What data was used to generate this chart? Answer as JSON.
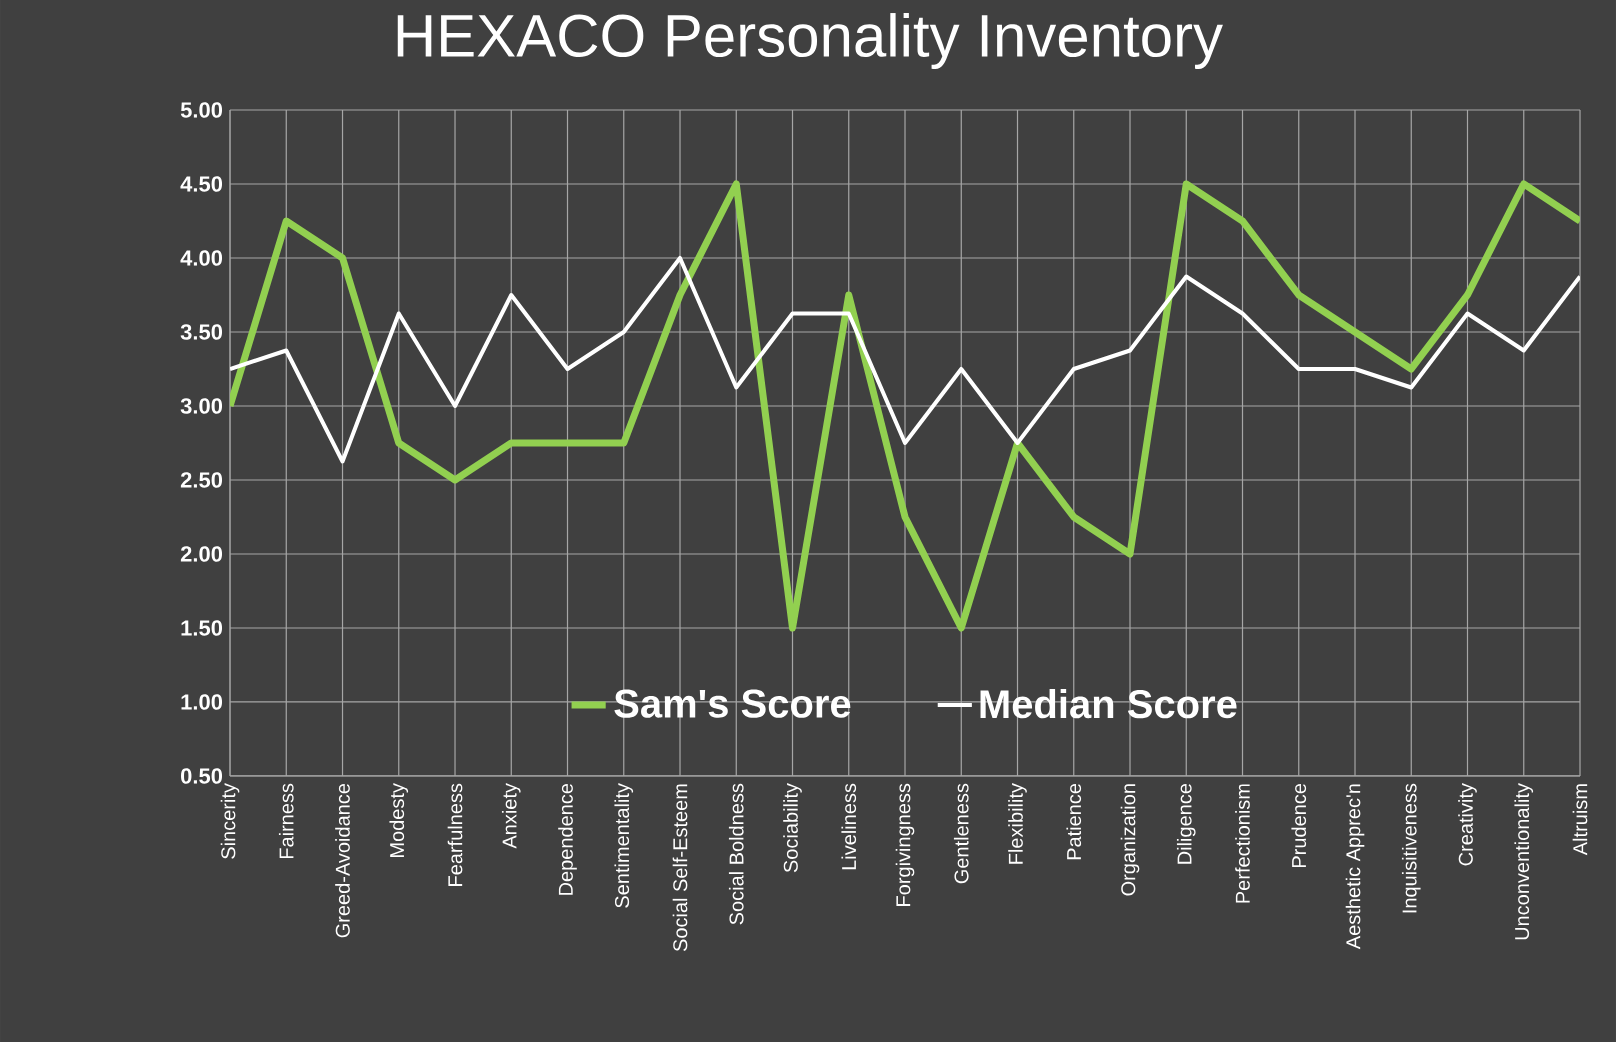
{
  "chart_data": {
    "type": "line",
    "title": "HEXACO Personality Inventory",
    "categories": [
      "Sincerity",
      "Fairness",
      "Greed-Avoidance",
      "Modesty",
      "Fearfulness",
      "Anxiety",
      "Dependence",
      "Sentimentality",
      "Social Self-Esteem",
      "Social Boldness",
      "Sociability",
      "Liveliness",
      "Forgivingness",
      "Gentleness",
      "Flexibility",
      "Patience",
      "Organization",
      "Diligence",
      "Perfectionism",
      "Prudence",
      "Aesthetic Apprec'n",
      "Inquisitiveness",
      "Creativity",
      "Unconventionality",
      "Altruism"
    ],
    "series": [
      {
        "name": "Sam's Score",
        "color": "#92d050",
        "values": [
          3.0,
          4.25,
          4.0,
          2.75,
          2.5,
          2.75,
          2.75,
          2.75,
          3.75,
          4.5,
          1.5,
          3.75,
          2.25,
          1.5,
          2.75,
          2.25,
          2.0,
          4.5,
          4.25,
          3.75,
          3.5,
          3.25,
          3.75,
          4.5,
          4.25
        ]
      },
      {
        "name": "Median Score",
        "color": "#ffffff",
        "values": [
          3.25,
          3.375,
          2.625,
          3.625,
          3.0,
          3.75,
          3.25,
          3.5,
          4.0,
          3.125,
          3.625,
          3.625,
          2.75,
          3.25,
          2.75,
          3.25,
          3.375,
          3.875,
          3.625,
          3.25,
          3.25,
          3.125,
          3.625,
          3.375,
          3.875
        ]
      }
    ],
    "ylim": [
      0.5,
      5.0
    ],
    "yticks": [
      {
        "value": 0.5,
        "label": "0.50"
      },
      {
        "value": 1.0,
        "label": "1.00"
      },
      {
        "value": 1.5,
        "label": "1.50"
      },
      {
        "value": 2.0,
        "label": "2.00"
      },
      {
        "value": 2.5,
        "label": "2.50"
      },
      {
        "value": 3.0,
        "label": "3.00"
      },
      {
        "value": 3.5,
        "label": "3.50"
      },
      {
        "value": 4.0,
        "label": "4.00"
      },
      {
        "value": 4.5,
        "label": "4.50"
      },
      {
        "value": 5.0,
        "label": "5.00"
      }
    ],
    "grid": true,
    "legend": "bottom",
    "marker": "none",
    "line_style": "solid"
  }
}
